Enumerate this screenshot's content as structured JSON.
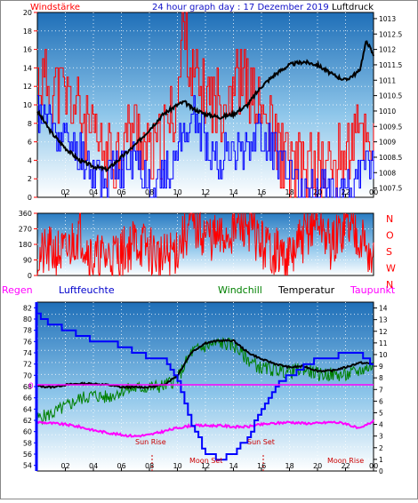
{
  "header": {
    "left_label": "Windstärke",
    "title": "24 hour graph day : 17 Dezember 2019",
    "right_label": "Luftdruck"
  },
  "labels": {
    "regen": "Regen",
    "luftfeuchte": "Luftfeuchte",
    "windchill": "Windchill",
    "temperatur": "Temperatur",
    "taupunkt": "Taupunkt",
    "sun_rise": "Sun Rise",
    "moon_set": "Moon Set",
    "sun_set": "Sun Set",
    "moon_rise": "Moon Rise",
    "zero_mark": "0"
  },
  "colors": {
    "background": "#ffffff",
    "plot_top": "#1f6fb8",
    "plot_bottom": "#ffffff",
    "title_blue": "#1010c8",
    "wind_red": "#ff0000",
    "wind_blue": "#0000ff",
    "pressure_black": "#000000",
    "humidity_blue": "#0044ff",
    "temperature_black": "#000000",
    "windchill_green": "#008000",
    "dewpoint_magenta": "#ff00ff",
    "zero_line": "#ff00ff"
  },
  "chart_data": [
    {
      "type": "line",
      "panel": "wind_pressure",
      "x_ticks": [
        "02",
        "04",
        "06",
        "08",
        "10",
        "12",
        "14",
        "16",
        "18",
        "20",
        "22",
        "00"
      ],
      "y_left_ticks": [
        "0",
        "2",
        "4",
        "6",
        "8",
        "10",
        "12",
        "14",
        "16",
        "18",
        "20"
      ],
      "y_left_range": [
        0,
        20
      ],
      "y_right_ticks": [
        "1007.5",
        "1008",
        "1008.5",
        "1009",
        "1009.5",
        "1010",
        "1010.5",
        "1011",
        "1011.5",
        "1012",
        "1012.5",
        "1013"
      ],
      "y_right_range": [
        1007.2,
        1013.2
      ],
      "x_range": [
        0,
        24
      ],
      "grid": true,
      "series": [
        {
          "axis": "right",
          "color": "black",
          "x": [
            0,
            1,
            2,
            3,
            4,
            5,
            6,
            7,
            8,
            9,
            10,
            10.5,
            11,
            12,
            13,
            14,
            15,
            16,
            17,
            18,
            19,
            20,
            21,
            22,
            23,
            23.5,
            24
          ],
          "y": [
            1010.0,
            1009.3,
            1008.8,
            1008.4,
            1008.2,
            1008.1,
            1008.5,
            1008.9,
            1009.4,
            1009.9,
            1010.2,
            1010.3,
            1010.1,
            1009.9,
            1009.8,
            1009.9,
            1010.2,
            1010.8,
            1011.2,
            1011.5,
            1011.6,
            1011.5,
            1011.2,
            1011.0,
            1011.3,
            1012.3,
            1011.8
          ]
        },
        {
          "axis": "left",
          "color": "blue",
          "x": [
            0,
            1,
            2,
            3,
            4,
            5,
            6,
            7,
            8,
            9,
            10,
            11,
            12,
            13,
            14,
            15,
            16,
            17,
            18,
            19,
            20,
            21,
            22,
            23,
            24
          ],
          "y": [
            9,
            8,
            6,
            5,
            3,
            2,
            3,
            4,
            2,
            2,
            5,
            9,
            6,
            4,
            5,
            6,
            7,
            5,
            2,
            1,
            1,
            1,
            1,
            2,
            4
          ]
        },
        {
          "axis": "left",
          "color": "red",
          "x": [
            0,
            1,
            2,
            3,
            4,
            5,
            6,
            7,
            8,
            9,
            10,
            10.5,
            11,
            12,
            13,
            14,
            15,
            16,
            17,
            18,
            19,
            20,
            21,
            22,
            23,
            24
          ],
          "y": [
            13,
            12,
            11,
            9,
            6,
            4,
            6,
            8,
            4,
            6,
            11,
            20,
            13,
            11,
            10,
            13,
            12,
            9,
            6,
            3,
            3,
            3,
            3,
            5,
            7,
            6
          ]
        }
      ]
    },
    {
      "type": "line",
      "panel": "wind_direction",
      "y_ticks": [
        "0",
        "90",
        "180",
        "270",
        "360"
      ],
      "y_range": [
        0,
        360
      ],
      "y_right_ticks": [
        "N",
        "O",
        "S",
        "W",
        "N"
      ],
      "x_range": [
        0,
        24
      ],
      "series": [
        {
          "color": "red",
          "x": [
            0,
            1,
            2,
            3,
            4,
            5,
            6,
            7,
            8,
            9,
            10,
            11,
            12,
            13,
            14,
            15,
            16,
            17,
            18,
            19,
            20,
            21,
            22,
            23,
            24
          ],
          "y": [
            100,
            140,
            120,
            260,
            90,
            110,
            130,
            200,
            150,
            90,
            160,
            300,
            240,
            200,
            270,
            300,
            180,
            140,
            90,
            220,
            330,
            160,
            300,
            250,
            60
          ]
        }
      ]
    },
    {
      "type": "line",
      "panel": "humidity_temperature",
      "y_left_ticks": [
        "54",
        "56",
        "58",
        "60",
        "62",
        "64",
        "66",
        "68",
        "70",
        "72",
        "74",
        "76",
        "78",
        "80",
        "82"
      ],
      "y_left_range": [
        53,
        83
      ],
      "y_right_ticks": [
        "0",
        "1",
        "2",
        "3",
        "4",
        "5",
        "6",
        "7",
        "8",
        "9",
        "10",
        "11",
        "12",
        "13",
        "14"
      ],
      "y_right_range": [
        0,
        14.5
      ],
      "x_range": [
        0,
        24
      ],
      "grid": true,
      "series": [
        {
          "name": "Luftfeuchte",
          "color": "blue",
          "x": [
            0,
            1,
            2,
            3,
            4,
            5,
            6,
            7,
            8,
            9,
            10,
            11,
            12,
            13,
            14,
            15,
            16,
            17,
            18,
            19,
            20,
            21,
            22,
            23,
            24
          ],
          "y": [
            80.5,
            79,
            78,
            77,
            76,
            76,
            75,
            74,
            73,
            73,
            69,
            61,
            56,
            55,
            56,
            59,
            64,
            68,
            70,
            71.5,
            73,
            73,
            74,
            73.5,
            72
          ]
        },
        {
          "name": "Temperatur",
          "color": "black",
          "x": [
            0,
            1,
            2,
            3,
            4,
            5,
            6,
            7,
            8,
            9,
            10,
            11,
            12,
            13,
            14,
            15,
            16,
            17,
            18,
            19,
            20,
            21,
            22,
            23,
            24
          ],
          "y": [
            7.3,
            7.2,
            7.4,
            7.5,
            7.5,
            7.4,
            7.2,
            7.2,
            7.2,
            7.4,
            8.2,
            10.2,
            11,
            11.2,
            11.2,
            10.2,
            9.6,
            9.2,
            8.9,
            9,
            8.6,
            8.6,
            8.9,
            9.3,
            9.2
          ]
        },
        {
          "name": "Windchill",
          "color": "green",
          "x": [
            0,
            1,
            2,
            3,
            4,
            5,
            6,
            7,
            8,
            9,
            10,
            11,
            12,
            13,
            14,
            15,
            16,
            17,
            18,
            19,
            20,
            21,
            22,
            23,
            24
          ],
          "y": [
            4.5,
            4.9,
            5.5,
            6.2,
            6.5,
            6.3,
            6.9,
            7.1,
            7.2,
            7.3,
            7.9,
            10.2,
            10.7,
            11,
            10.8,
            9.6,
            8.8,
            8.7,
            8.5,
            8.8,
            8.3,
            8.3,
            8.2,
            8.6,
            9.1
          ]
        },
        {
          "name": "Taupunkt",
          "color": "magenta",
          "x": [
            0,
            1,
            2,
            3,
            4,
            5,
            6,
            7,
            8,
            9,
            10,
            11,
            12,
            13,
            14,
            15,
            16,
            17,
            18,
            19,
            20,
            21,
            22,
            23,
            24
          ],
          "y": [
            4.2,
            4.1,
            4.0,
            3.8,
            3.5,
            3.3,
            3.1,
            3.0,
            3.1,
            3.4,
            3.7,
            3.9,
            3.9,
            3.9,
            3.8,
            3.8,
            4.0,
            4.1,
            4.2,
            4.1,
            4.1,
            4.2,
            4.1,
            3.6,
            4.3
          ]
        }
      ]
    }
  ]
}
